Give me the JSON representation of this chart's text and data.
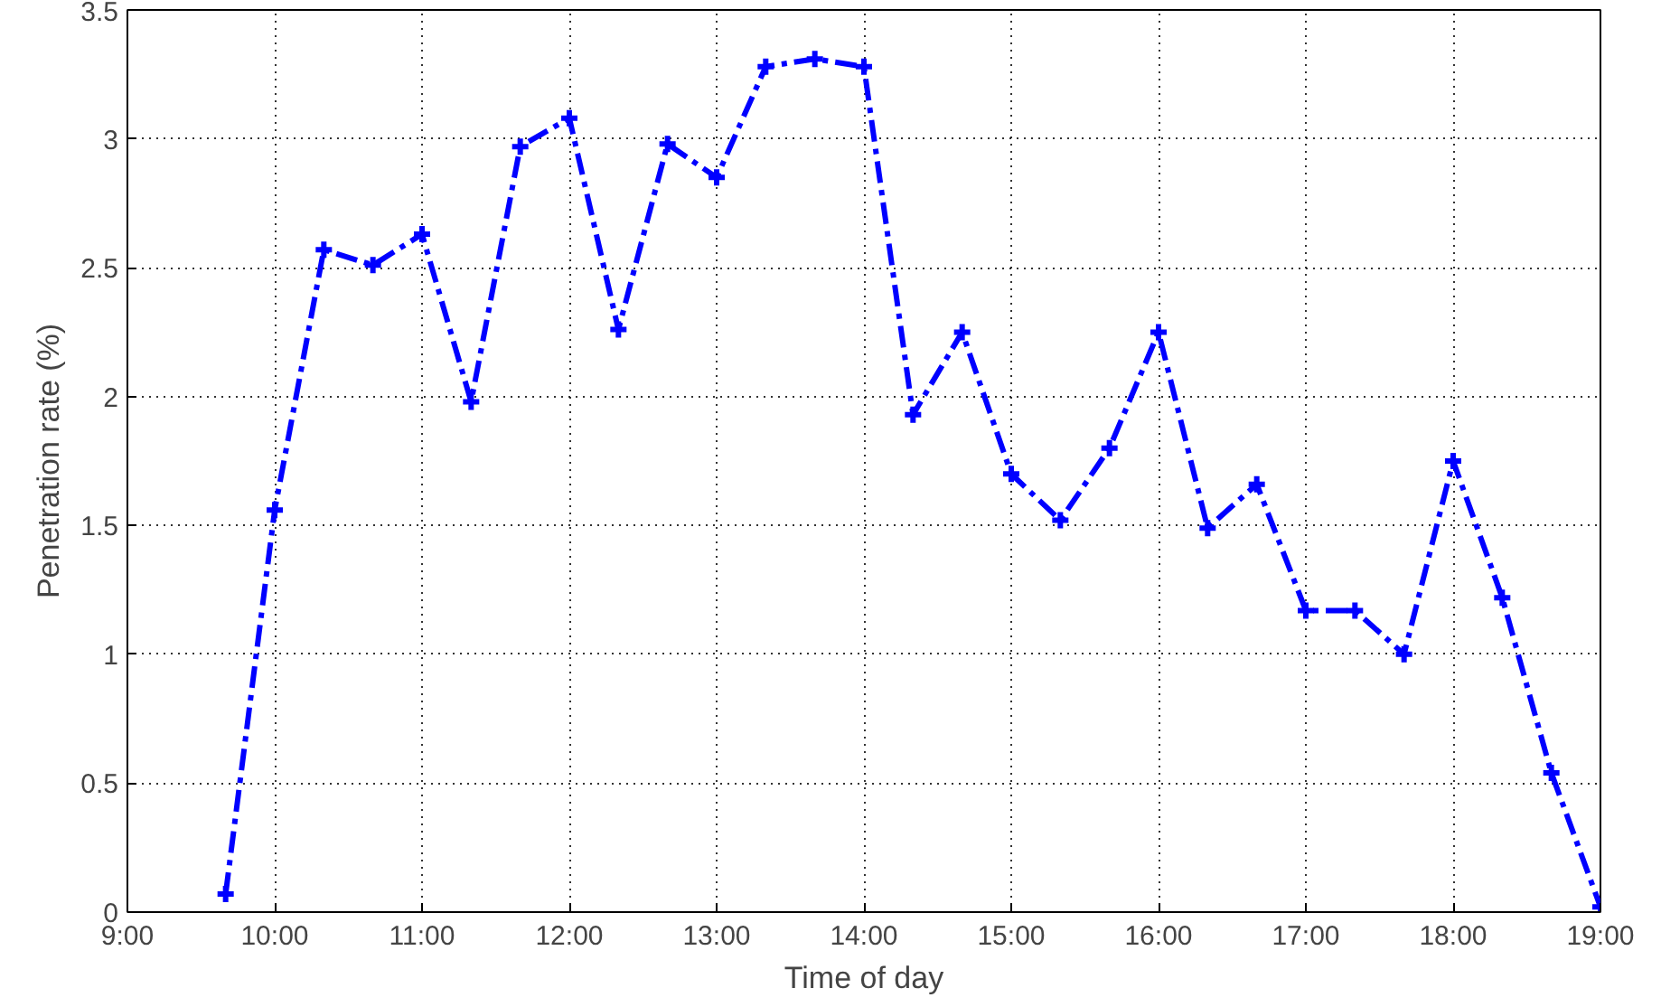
{
  "chart_data": {
    "type": "line",
    "xlabel": "Time of day",
    "ylabel": "Penetration rate (%)",
    "x": [
      9.6667,
      10,
      10.3333,
      10.6667,
      11,
      11.3333,
      11.6667,
      12,
      12.3333,
      12.6667,
      13,
      13.3333,
      13.6667,
      14,
      14.3333,
      14.6667,
      15,
      15.3333,
      15.6667,
      16,
      16.3333,
      16.6667,
      17,
      17.3333,
      17.6667,
      18,
      18.3333,
      18.6667,
      19
    ],
    "series": [
      {
        "color": "#0000ff",
        "values": [
          0.07,
          1.56,
          2.57,
          2.51,
          2.63,
          1.98,
          2.97,
          3.08,
          2.26,
          2.98,
          2.85,
          3.28,
          3.31,
          3.28,
          1.93,
          2.25,
          1.7,
          1.52,
          1.8,
          2.25,
          1.49,
          1.66,
          1.17,
          1.17,
          1.0,
          1.75,
          1.22,
          0.54,
          0.02
        ]
      }
    ],
    "xlim": [
      9,
      19
    ],
    "ylim": [
      0,
      3.5
    ],
    "xticks": [
      {
        "value": 9,
        "label": "9:00"
      },
      {
        "value": 10,
        "label": "10:00"
      },
      {
        "value": 11,
        "label": "11:00"
      },
      {
        "value": 12,
        "label": "12:00"
      },
      {
        "value": 13,
        "label": "13:00"
      },
      {
        "value": 14,
        "label": "14:00"
      },
      {
        "value": 15,
        "label": "15:00"
      },
      {
        "value": 16,
        "label": "16:00"
      },
      {
        "value": 17,
        "label": "17:00"
      },
      {
        "value": 18,
        "label": "18:00"
      },
      {
        "value": 19,
        "label": "19:00"
      }
    ],
    "yticks": [
      0,
      0.5,
      1,
      1.5,
      2,
      2.5,
      3,
      3.5
    ],
    "grid": true,
    "marker": "cross",
    "line_style": "dashdot"
  }
}
